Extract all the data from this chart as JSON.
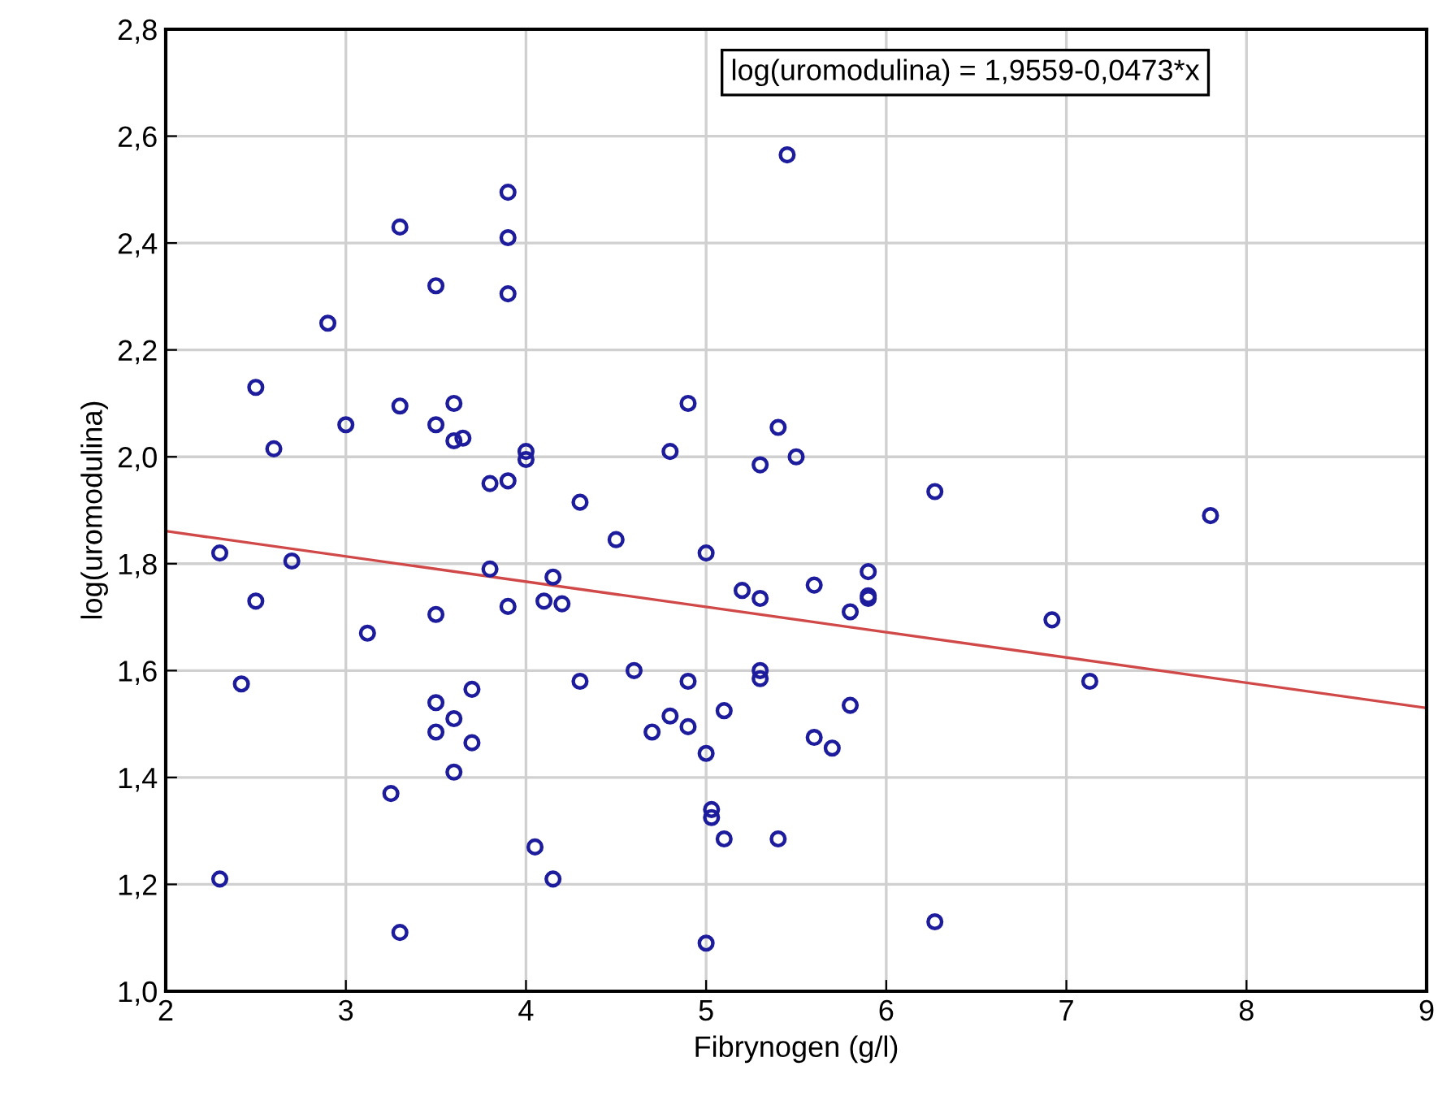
{
  "chart_data": {
    "type": "scatter",
    "xlabel": "Fibrynogen (g/l)",
    "ylabel": "log(uromodulina)",
    "annotations": [
      "log(uromodulina) = 1,9559-0,0473*x"
    ],
    "xlim": [
      2,
      9
    ],
    "xticks": [
      2,
      3,
      4,
      5,
      6,
      7,
      8,
      9
    ],
    "ylim": [
      1.0,
      2.8
    ],
    "yticks": [
      {
        "value": 1.0,
        "label": "1,0"
      },
      {
        "value": 1.2,
        "label": "1,2"
      },
      {
        "value": 1.4,
        "label": "1,4"
      },
      {
        "value": 1.6,
        "label": "1,6"
      },
      {
        "value": 1.8,
        "label": "1,8"
      },
      {
        "value": 2.0,
        "label": "2,0"
      },
      {
        "value": 2.2,
        "label": "2,2"
      },
      {
        "value": 2.4,
        "label": "2,4"
      },
      {
        "value": 2.6,
        "label": "2,6"
      },
      {
        "value": 2.8,
        "label": "2,8"
      }
    ],
    "grid": true,
    "legend": false,
    "series": [
      {
        "color": "#1c1c9c",
        "marker": "circle",
        "x": [
          2.3,
          2.3,
          2.42,
          2.5,
          2.5,
          2.6,
          2.7,
          2.9,
          3.0,
          3.12,
          3.25,
          3.3,
          3.3,
          3.3,
          3.5,
          3.5,
          3.5,
          3.5,
          3.5,
          3.6,
          3.6,
          3.6,
          3.6,
          3.65,
          3.7,
          3.7,
          3.8,
          3.8,
          3.9,
          3.9,
          3.9,
          3.9,
          3.9,
          4.0,
          4.0,
          4.05,
          4.1,
          4.15,
          4.15,
          4.2,
          4.3,
          4.3,
          4.5,
          4.6,
          4.7,
          4.8,
          4.8,
          4.9,
          4.9,
          4.9,
          5.0,
          5.0,
          5.03,
          5.03,
          5.0,
          5.1,
          5.1,
          5.2,
          5.3,
          5.3,
          5.3,
          5.3,
          5.4,
          5.4,
          5.45,
          5.5,
          5.6,
          5.6,
          5.7,
          5.8,
          5.8,
          5.9,
          5.9,
          5.9,
          6.27,
          6.27,
          6.92,
          7.13,
          7.8
        ],
        "values": [
          1.82,
          1.21,
          1.575,
          2.13,
          1.73,
          2.015,
          1.805,
          2.25,
          2.06,
          1.67,
          1.37,
          2.43,
          2.095,
          1.11,
          2.32,
          2.06,
          1.705,
          1.54,
          1.485,
          2.1,
          2.03,
          1.51,
          1.41,
          2.035,
          1.565,
          1.465,
          1.95,
          1.79,
          2.495,
          2.41,
          2.305,
          1.955,
          1.72,
          2.01,
          1.995,
          1.27,
          1.73,
          1.775,
          1.21,
          1.725,
          1.915,
          1.58,
          1.845,
          1.6,
          1.485,
          2.01,
          1.515,
          2.1,
          1.58,
          1.495,
          1.82,
          1.445,
          1.34,
          1.325,
          1.09,
          1.525,
          1.285,
          1.75,
          1.985,
          1.735,
          1.6,
          1.585,
          2.055,
          1.285,
          2.565,
          2.0,
          1.76,
          1.475,
          1.455,
          1.71,
          1.535,
          1.785,
          1.74,
          1.735,
          1.935,
          1.13,
          1.695,
          1.58,
          1.89
        ]
      },
      {
        "type": "line",
        "color": "#d04848",
        "marker": "none",
        "line_style": "solid",
        "x": [
          2,
          9
        ],
        "values": [
          1.861,
          1.53
        ]
      }
    ]
  }
}
